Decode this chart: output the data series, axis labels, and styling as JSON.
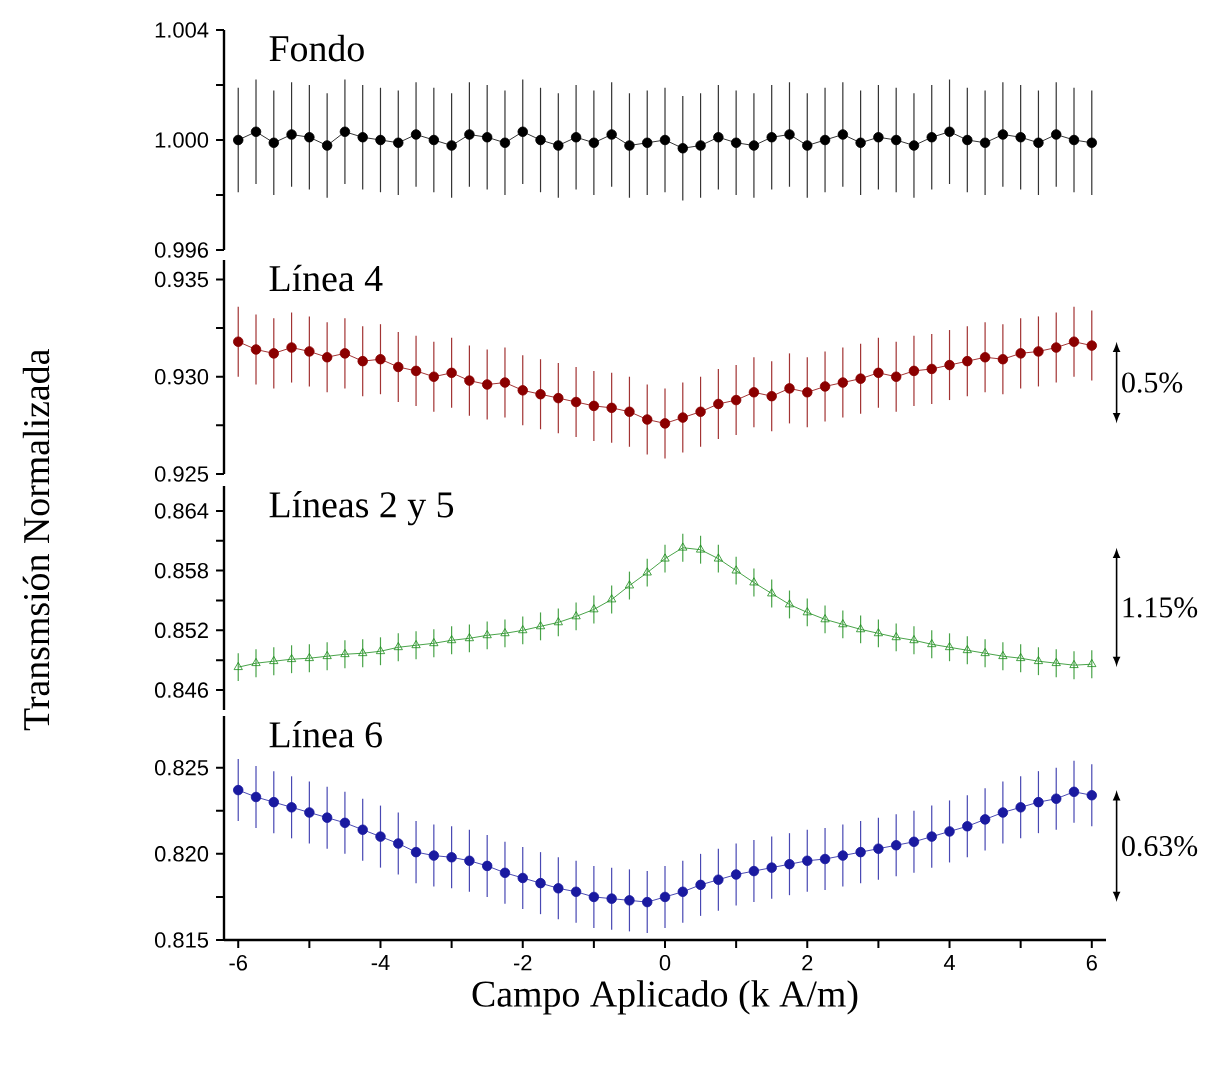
{
  "chart_data": [
    {
      "type": "line",
      "title": "Fondo",
      "ylim": [
        0.996,
        1.004
      ],
      "yticks": [
        1.004,
        {
          "value": 1.002,
          "label": null
        },
        {
          "value": 1.0,
          "label": "1.000"
        },
        {
          "value": 0.998,
          "label": null
        },
        0.996
      ],
      "tick_labels": "y",
      "marker": "circle",
      "x": [
        -6,
        -5.75,
        -5.5,
        -5.25,
        -5,
        -4.75,
        -4.5,
        -4.25,
        -4,
        -3.75,
        -3.5,
        -3.25,
        -3,
        -2.75,
        -2.5,
        -2.25,
        -2,
        -1.75,
        -1.5,
        -1.25,
        -1,
        -0.75,
        -0.5,
        -0.25,
        0,
        0.25,
        0.5,
        0.75,
        1,
        1.25,
        1.5,
        1.75,
        2,
        2.25,
        2.5,
        2.75,
        3,
        3.25,
        3.5,
        3.75,
        4,
        4.25,
        4.5,
        4.75,
        5,
        5.25,
        5.5,
        5.75,
        6
      ],
      "series": [
        {
          "color": "#000000",
          "values": [
            1.0,
            1.0003,
            0.9999,
            1.0002,
            1.0001,
            0.9998,
            1.0003,
            1.0001,
            1.0,
            0.9999,
            1.0002,
            1.0,
            0.9998,
            1.0002,
            1.0001,
            0.9999,
            1.0003,
            1.0,
            0.9998,
            1.0001,
            0.9999,
            1.0002,
            0.9998,
            0.9999,
            1.0,
            0.9997,
            0.9998,
            1.0001,
            0.9999,
            0.9998,
            1.0001,
            1.0002,
            0.9998,
            1.0,
            1.0002,
            0.9999,
            1.0001,
            1.0,
            0.9998,
            1.0001,
            1.0003,
            1.0,
            0.9999,
            1.0002,
            1.0001,
            0.9999,
            1.0002,
            1.0,
            0.9999
          ],
          "errors": [
            0.0019,
            0.0019,
            0.0019,
            0.0019,
            0.0019,
            0.0019,
            0.0019,
            0.0019,
            0.0019,
            0.0019,
            0.0019,
            0.0019,
            0.0019,
            0.0019,
            0.0019,
            0.0019,
            0.0019,
            0.0019,
            0.0019,
            0.0019,
            0.0019,
            0.0019,
            0.0019,
            0.0019,
            0.0019,
            0.0019,
            0.0019,
            0.0019,
            0.0019,
            0.0019,
            0.0019,
            0.0019,
            0.0019,
            0.0019,
            0.0019,
            0.0019,
            0.0019,
            0.0019,
            0.0019,
            0.0019,
            0.0019,
            0.0019,
            0.0019,
            0.0019,
            0.0019,
            0.0019,
            0.0019,
            0.0019,
            0.0019
          ]
        }
      ]
    },
    {
      "type": "line",
      "title": "Línea 4",
      "ylim": [
        0.925,
        0.936
      ],
      "yticks": [
        0.935,
        {
          "value": 0.9325,
          "label": null
        },
        {
          "value": 0.93,
          "label": "0.930"
        },
        {
          "value": 0.9275,
          "label": null
        },
        0.925
      ],
      "tick_labels": "y",
      "marker": "circle",
      "annotations": [
        "0.5%"
      ],
      "x": [
        -6,
        -5.75,
        -5.5,
        -5.25,
        -5,
        -4.75,
        -4.5,
        -4.25,
        -4,
        -3.75,
        -3.5,
        -3.25,
        -3,
        -2.75,
        -2.5,
        -2.25,
        -2,
        -1.75,
        -1.5,
        -1.25,
        -1,
        -0.75,
        -0.5,
        -0.25,
        0,
        0.25,
        0.5,
        0.75,
        1,
        1.25,
        1.5,
        1.75,
        2,
        2.25,
        2.5,
        2.75,
        3,
        3.25,
        3.5,
        3.75,
        4,
        4.25,
        4.5,
        4.75,
        5,
        5.25,
        5.5,
        5.75,
        6
      ],
      "series": [
        {
          "color": "#8b0000",
          "values": [
            0.9318,
            0.9314,
            0.9312,
            0.9315,
            0.9313,
            0.931,
            0.9312,
            0.9308,
            0.9309,
            0.9305,
            0.9303,
            0.93,
            0.9302,
            0.9298,
            0.9296,
            0.9297,
            0.9293,
            0.9291,
            0.9289,
            0.9287,
            0.9285,
            0.9284,
            0.9282,
            0.9278,
            0.9276,
            0.9279,
            0.9282,
            0.9286,
            0.9288,
            0.9292,
            0.929,
            0.9294,
            0.9292,
            0.9295,
            0.9297,
            0.9299,
            0.9302,
            0.93,
            0.9303,
            0.9304,
            0.9306,
            0.9308,
            0.931,
            0.9309,
            0.9312,
            0.9313,
            0.9315,
            0.9318,
            0.9316
          ],
          "errors": [
            0.0018,
            0.0018,
            0.0018,
            0.0018,
            0.0018,
            0.0018,
            0.0018,
            0.0018,
            0.0018,
            0.0018,
            0.0018,
            0.0018,
            0.0018,
            0.0018,
            0.0018,
            0.0018,
            0.0018,
            0.0018,
            0.0018,
            0.0018,
            0.0018,
            0.0018,
            0.0018,
            0.0018,
            0.0018,
            0.0018,
            0.0018,
            0.0018,
            0.0018,
            0.0018,
            0.0018,
            0.0018,
            0.0018,
            0.0018,
            0.0018,
            0.0018,
            0.0018,
            0.0018,
            0.0018,
            0.0018,
            0.0018,
            0.0018,
            0.0018,
            0.0018,
            0.0018,
            0.0018,
            0.0018,
            0.0018,
            0.0018
          ]
        }
      ]
    },
    {
      "type": "line",
      "title": "Líneas 2 y 5",
      "ylabel": "Transmsión Normalizada",
      "ylim": [
        0.844,
        0.8665
      ],
      "yticks": [
        0.864,
        {
          "value": 0.861,
          "label": null
        },
        0.858,
        {
          "value": 0.855,
          "label": null
        },
        0.852,
        {
          "value": 0.849,
          "label": null
        },
        0.846
      ],
      "tick_labels": "y",
      "marker": "triangle",
      "annotations": [
        "1.15%"
      ],
      "x": [
        -6,
        -5.75,
        -5.5,
        -5.25,
        -5,
        -4.75,
        -4.5,
        -4.25,
        -4,
        -3.75,
        -3.5,
        -3.25,
        -3,
        -2.75,
        -2.5,
        -2.25,
        -2,
        -1.75,
        -1.5,
        -1.25,
        -1,
        -0.75,
        -0.5,
        -0.25,
        0,
        0.25,
        0.5,
        0.75,
        1,
        1.25,
        1.5,
        1.75,
        2,
        2.25,
        2.5,
        2.75,
        3,
        3.25,
        3.5,
        3.75,
        4,
        4.25,
        4.5,
        4.75,
        5,
        5.25,
        5.5,
        5.75,
        6
      ],
      "series": [
        {
          "color": "#1a8c1a",
          "values": [
            0.8483,
            0.8487,
            0.8489,
            0.8491,
            0.8492,
            0.8494,
            0.8496,
            0.8497,
            0.8499,
            0.8503,
            0.8505,
            0.8507,
            0.851,
            0.8512,
            0.8515,
            0.8517,
            0.852,
            0.8524,
            0.8528,
            0.8534,
            0.8541,
            0.8551,
            0.8565,
            0.8578,
            0.8592,
            0.8603,
            0.8601,
            0.8592,
            0.858,
            0.8568,
            0.8557,
            0.8546,
            0.8538,
            0.8531,
            0.8526,
            0.8521,
            0.8517,
            0.8513,
            0.851,
            0.8506,
            0.8503,
            0.85,
            0.8497,
            0.8494,
            0.8492,
            0.8489,
            0.8487,
            0.8485,
            0.8486
          ],
          "errors": [
            0.0014,
            0.0014,
            0.0014,
            0.0014,
            0.0014,
            0.0014,
            0.0014,
            0.0014,
            0.0014,
            0.0014,
            0.0014,
            0.0014,
            0.0014,
            0.0014,
            0.0014,
            0.0014,
            0.0014,
            0.0014,
            0.0014,
            0.0014,
            0.0014,
            0.0014,
            0.0014,
            0.0014,
            0.0014,
            0.0014,
            0.0014,
            0.0014,
            0.0014,
            0.0014,
            0.0014,
            0.0014,
            0.0014,
            0.0014,
            0.0014,
            0.0014,
            0.0014,
            0.0014,
            0.0014,
            0.0014,
            0.0014,
            0.0014,
            0.0014,
            0.0014,
            0.0014,
            0.0014,
            0.0014,
            0.0014,
            0.0014
          ]
        }
      ]
    },
    {
      "type": "line",
      "title": "Línea 6",
      "xlabel": "Campo Aplicado (k A/m)",
      "xlim": [
        -6.2,
        6.2
      ],
      "ylim": [
        0.815,
        0.828
      ],
      "xticks": [
        -6,
        {
          "value": -5,
          "label": null
        },
        -4,
        {
          "value": -3,
          "label": null
        },
        -2,
        {
          "value": -1,
          "label": null
        },
        0,
        {
          "value": 1,
          "label": null
        },
        2,
        {
          "value": 3,
          "label": null
        },
        4,
        {
          "value": 5,
          "label": null
        },
        6
      ],
      "yticks": [
        0.825,
        {
          "value": 0.8225,
          "label": null
        },
        {
          "value": 0.82,
          "label": "0.820"
        },
        {
          "value": 0.8175,
          "label": null
        },
        0.815
      ],
      "marker": "circle",
      "annotations": [
        "0.63%"
      ],
      "x": [
        -6,
        -5.75,
        -5.5,
        -5.25,
        -5,
        -4.75,
        -4.5,
        -4.25,
        -4,
        -3.75,
        -3.5,
        -3.25,
        -3,
        -2.75,
        -2.5,
        -2.25,
        -2,
        -1.75,
        -1.5,
        -1.25,
        -1,
        -0.75,
        -0.5,
        -0.25,
        0,
        0.25,
        0.5,
        0.75,
        1,
        1.25,
        1.5,
        1.75,
        2,
        2.25,
        2.5,
        2.75,
        3,
        3.25,
        3.5,
        3.75,
        4,
        4.25,
        4.5,
        4.75,
        5,
        5.25,
        5.5,
        5.75,
        6
      ],
      "series": [
        {
          "color": "#1a1aa0",
          "values": [
            0.8237,
            0.8233,
            0.823,
            0.8227,
            0.8224,
            0.8221,
            0.8218,
            0.8214,
            0.821,
            0.8206,
            0.8201,
            0.8199,
            0.8198,
            0.8196,
            0.8193,
            0.8189,
            0.8186,
            0.8183,
            0.818,
            0.8178,
            0.8175,
            0.8174,
            0.8173,
            0.8172,
            0.8175,
            0.8178,
            0.8182,
            0.8185,
            0.8188,
            0.819,
            0.8192,
            0.8194,
            0.8196,
            0.8197,
            0.8199,
            0.8201,
            0.8203,
            0.8205,
            0.8207,
            0.821,
            0.8213,
            0.8216,
            0.822,
            0.8224,
            0.8227,
            0.823,
            0.8232,
            0.8236,
            0.8234
          ],
          "errors": [
            0.0018,
            0.0018,
            0.0018,
            0.0018,
            0.0018,
            0.0018,
            0.0018,
            0.0018,
            0.0018,
            0.0018,
            0.0018,
            0.0018,
            0.0018,
            0.0018,
            0.0018,
            0.0018,
            0.0018,
            0.0018,
            0.0018,
            0.0018,
            0.0018,
            0.0018,
            0.0018,
            0.0018,
            0.0018,
            0.0018,
            0.0018,
            0.0018,
            0.0018,
            0.0018,
            0.0018,
            0.0018,
            0.0018,
            0.0018,
            0.0018,
            0.0018,
            0.0018,
            0.0018,
            0.0018,
            0.0018,
            0.0018,
            0.0018,
            0.0018,
            0.0018,
            0.0018,
            0.0018,
            0.0018,
            0.0018,
            0.0018
          ]
        }
      ]
    }
  ]
}
